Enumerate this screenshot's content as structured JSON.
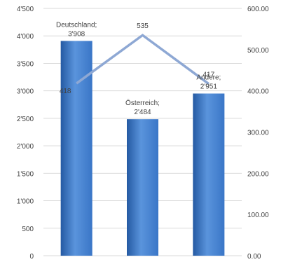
{
  "chart_data": {
    "type": "bar",
    "categories": [
      "Deutschland",
      "Österreich",
      "Andere"
    ],
    "series": [
      {
        "type": "bar",
        "axis": "left",
        "values": [
          3908,
          2484,
          2951
        ]
      },
      {
        "type": "line",
        "axis": "right",
        "values": [
          418,
          535,
          417
        ]
      }
    ],
    "bar_labels": [
      "Deutschland;\n3'908",
      "Österreich;\n2'484",
      "Andere;\n2'951"
    ],
    "line_labels": [
      "418",
      "535",
      "417"
    ],
    "y_left": {
      "min": 0,
      "max": 4500,
      "ticks": [
        "0",
        "500",
        "1'000",
        "1'500",
        "2'000",
        "2'500",
        "3'000",
        "3'500",
        "4'000",
        "4'500"
      ]
    },
    "y_right": {
      "min": 0,
      "max": 600,
      "ticks": [
        "0.00",
        "100.00",
        "200.00",
        "300.00",
        "400.00",
        "500.00",
        "600.00"
      ]
    },
    "title": "",
    "xlabel": "",
    "ylabel": "",
    "grid": true,
    "colors": {
      "bar": "#3a76c7",
      "bar_light": "#5a94dc",
      "bar_dark": "#255aa3",
      "line": "#8ea8d4",
      "grid": "#d9d9d9"
    }
  }
}
